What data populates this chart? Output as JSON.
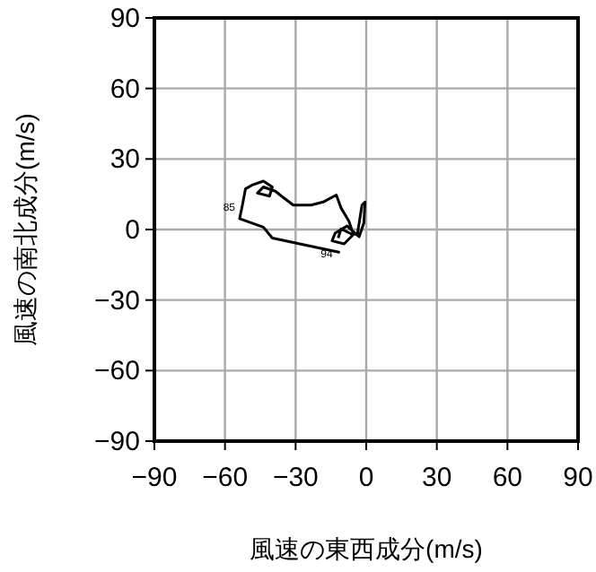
{
  "chart_data": {
    "type": "line",
    "xlabel": "風速の東西成分(m/s)",
    "ylabel": "風速の南北成分(m/s)",
    "xlim": [
      -90,
      90
    ],
    "ylim": [
      -90,
      90
    ],
    "xticks": [
      {
        "value": -90,
        "label": "−90"
      },
      {
        "value": -60,
        "label": "−60"
      },
      {
        "value": -30,
        "label": "−30"
      },
      0,
      30,
      60,
      90
    ],
    "yticks": [
      {
        "value": -90,
        "label": "−90"
      },
      {
        "value": -60,
        "label": "−60"
      },
      {
        "value": -30,
        "label": "−30"
      },
      0,
      30,
      60,
      90
    ],
    "grid": true,
    "series": [
      {
        "color": "#000000",
        "x": [
          -11.2,
          -39.9,
          -43.7,
          -53.8,
          -52.6,
          -51.3,
          -48.7,
          -43.7,
          -39.9,
          -41.1,
          -46.2,
          -43.7,
          -38.6,
          -36.0,
          -31.0,
          -23.4,
          -18.3,
          -12.7,
          -10.7,
          -7.4,
          -5.6,
          -3.8,
          -1.8,
          -0.5,
          -1.0,
          -3.0,
          -8.1,
          -13.2,
          -14.5,
          -9.4,
          -5.6,
          -10.7,
          -11.9
        ],
        "values": [
          -9.7,
          -3.6,
          1.0,
          4.6,
          10.4,
          17.3,
          18.8,
          20.6,
          18.1,
          14.2,
          15.5,
          18.1,
          16.3,
          14.2,
          10.4,
          10.4,
          11.7,
          14.7,
          9.2,
          3.6,
          -1.5,
          -2.3,
          10.4,
          11.7,
          2.8,
          -3.1,
          1.5,
          -1.5,
          -4.8,
          -6.1,
          -2.3,
          0.3,
          -3.6
        ]
      }
    ],
    "annotations": [
      {
        "text": "85",
        "x": -52.6,
        "y": 10.4
      },
      {
        "text": "94",
        "x": -11.2,
        "y": -9.7
      }
    ]
  }
}
